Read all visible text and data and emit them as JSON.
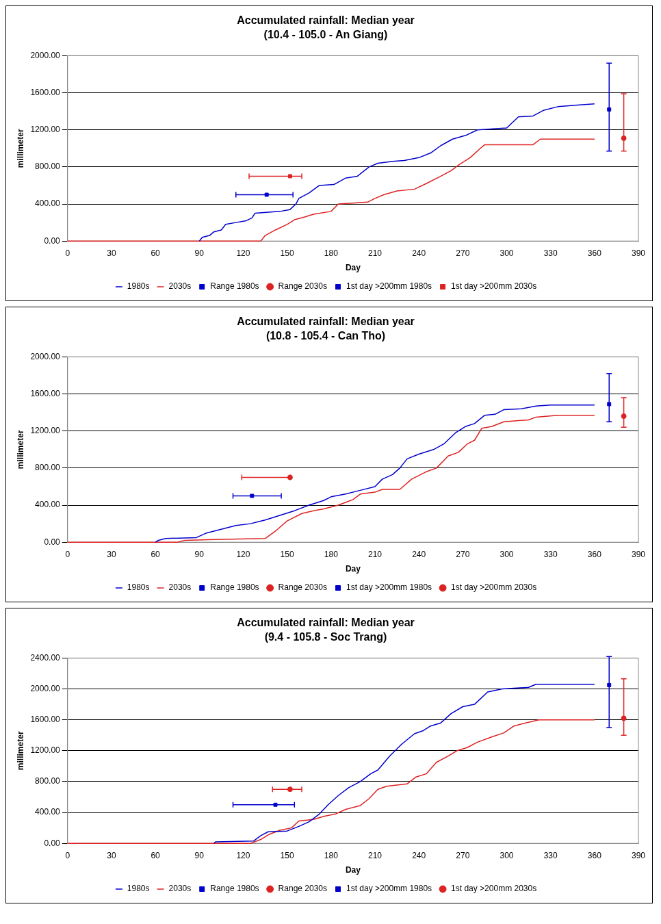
{
  "chart_data": [
    {
      "type": "line",
      "title": "Accumulated rainfall: Median year",
      "subtitle": "(10.4 - 105.0 - An Giang)",
      "xlabel": "Day",
      "ylabel": "millimeter",
      "xlim": [
        0,
        390
      ],
      "xticks": [
        0,
        30,
        60,
        90,
        120,
        150,
        180,
        210,
        240,
        270,
        300,
        330,
        360,
        390
      ],
      "ylim": [
        0,
        2000
      ],
      "yticks": [
        {
          "value": 0,
          "label": "0.00"
        },
        {
          "value": 400,
          "label": "400.00"
        },
        {
          "value": 800,
          "label": "800.00"
        },
        {
          "value": 1200,
          "label": "1200.00"
        },
        {
          "value": 1600,
          "label": "1600.00"
        },
        {
          "value": 2000,
          "label": "2000.00"
        }
      ],
      "grid": "y",
      "legend": "bottom",
      "series": [
        {
          "name": "1980s",
          "type": "line",
          "color": "#0000cc",
          "marker": "none",
          "x": [
            90,
            92,
            97,
            100,
            105,
            108,
            115,
            122,
            126,
            128,
            145,
            152,
            156,
            158,
            165,
            172,
            182,
            190,
            198,
            206,
            212,
            222,
            230,
            240,
            248,
            255,
            263,
            272,
            280,
            300,
            308,
            318,
            325,
            335,
            350,
            360
          ],
          "values": [
            0,
            40,
            60,
            100,
            120,
            180,
            200,
            220,
            250,
            300,
            320,
            340,
            400,
            460,
            520,
            600,
            610,
            680,
            700,
            800,
            840,
            860,
            870,
            900,
            950,
            1030,
            1100,
            1140,
            1200,
            1220,
            1340,
            1350,
            1410,
            1450,
            1470,
            1480
          ]
        },
        {
          "name": "2030s",
          "type": "line",
          "color": "#dd2222",
          "marker": "none",
          "x": [
            0,
            132,
            135,
            142,
            150,
            155,
            162,
            168,
            180,
            185,
            205,
            210,
            216,
            225,
            237,
            245,
            255,
            262,
            268,
            275,
            282,
            285,
            318,
            323,
            360
          ],
          "values": [
            0,
            0,
            60,
            120,
            180,
            230,
            260,
            290,
            320,
            400,
            420,
            460,
            500,
            540,
            560,
            620,
            700,
            760,
            830,
            900,
            1000,
            1040,
            1040,
            1100,
            1100
          ]
        },
        {
          "name": "Range 1980s",
          "type": "scatter",
          "color": "#0000cc",
          "marker": "square",
          "x": [
            370
          ],
          "values": [
            1420
          ],
          "errors": [
            [
              970,
              1920
            ]
          ]
        },
        {
          "name": "Range 2030s",
          "type": "scatter",
          "color": "#dd2222",
          "marker": "circle",
          "x": [
            380
          ],
          "values": [
            1110
          ],
          "errors": [
            [
              970,
              1590
            ]
          ]
        },
        {
          "name": "1st day >200mm 1980s",
          "type": "scatter",
          "color": "#0000cc",
          "marker": "square",
          "x": [
            136
          ],
          "values": [
            500
          ],
          "xerrors": [
            [
              115,
              154
            ]
          ]
        },
        {
          "name": "1st day >200mm 2030s",
          "type": "scatter",
          "color": "#dd2222",
          "marker": "square",
          "x": [
            152
          ],
          "values": [
            700
          ],
          "xerrors": [
            [
              124,
              160
            ]
          ]
        }
      ]
    },
    {
      "type": "line",
      "title": "Accumulated rainfall: Median year",
      "subtitle": "(10.8 - 105.4 - Can Tho)",
      "xlabel": "Day",
      "ylabel": "millimeter",
      "xlim": [
        0,
        390
      ],
      "xticks": [
        0,
        30,
        60,
        90,
        120,
        150,
        180,
        210,
        240,
        270,
        300,
        330,
        360,
        390
      ],
      "ylim": [
        0,
        2000
      ],
      "yticks": [
        {
          "value": 0,
          "label": "0.00"
        },
        {
          "value": 400,
          "label": "400.00"
        },
        {
          "value": 800,
          "label": "800.00"
        },
        {
          "value": 1200,
          "label": "1200.00"
        },
        {
          "value": 1600,
          "label": "1600.00"
        },
        {
          "value": 2000,
          "label": "2000.00"
        }
      ],
      "grid": "y",
      "legend": "bottom",
      "series": [
        {
          "name": "1980s",
          "type": "line",
          "color": "#0000cc",
          "marker": "none",
          "x": [
            60,
            62,
            67,
            88,
            95,
            105,
            115,
            125,
            135,
            145,
            155,
            165,
            175,
            180,
            190,
            200,
            210,
            215,
            222,
            227,
            232,
            240,
            250,
            257,
            265,
            272,
            278,
            285,
            292,
            298,
            310,
            320,
            330,
            360
          ],
          "values": [
            0,
            20,
            40,
            50,
            100,
            140,
            180,
            200,
            240,
            290,
            340,
            400,
            450,
            490,
            520,
            560,
            600,
            680,
            730,
            800,
            900,
            950,
            1000,
            1060,
            1180,
            1250,
            1280,
            1370,
            1380,
            1430,
            1440,
            1470,
            1480,
            1480
          ]
        },
        {
          "name": "2030s",
          "type": "line",
          "color": "#dd2222",
          "marker": "none",
          "x": [
            0,
            75,
            80,
            100,
            135,
            142,
            150,
            160,
            168,
            175,
            185,
            195,
            200,
            210,
            215,
            227,
            235,
            245,
            252,
            260,
            267,
            273,
            278,
            283,
            290,
            298,
            315,
            320,
            335,
            360
          ],
          "values": [
            0,
            0,
            20,
            30,
            40,
            120,
            230,
            310,
            340,
            360,
            400,
            460,
            520,
            540,
            570,
            570,
            680,
            760,
            800,
            930,
            970,
            1060,
            1100,
            1230,
            1250,
            1300,
            1320,
            1350,
            1370,
            1370
          ]
        },
        {
          "name": "Range 1980s",
          "type": "scatter",
          "color": "#0000cc",
          "marker": "square",
          "x": [
            370
          ],
          "values": [
            1490
          ],
          "errors": [
            [
              1300,
              1820
            ]
          ]
        },
        {
          "name": "Range 2030s",
          "type": "scatter",
          "color": "#dd2222",
          "marker": "circle",
          "x": [
            380
          ],
          "values": [
            1360
          ],
          "errors": [
            [
              1240,
              1560
            ]
          ]
        },
        {
          "name": "1st day >200mm 1980s",
          "type": "scatter",
          "color": "#0000cc",
          "marker": "square",
          "x": [
            126
          ],
          "values": [
            500
          ],
          "xerrors": [
            [
              113,
              146
            ]
          ]
        },
        {
          "name": "1st day >200mm 2030s",
          "type": "scatter",
          "color": "#dd2222",
          "marker": "circle",
          "x": [
            152
          ],
          "values": [
            700
          ],
          "xerrors": [
            [
              119,
              152
            ]
          ]
        }
      ]
    },
    {
      "type": "line",
      "title": "Accumulated rainfall: Median year",
      "subtitle": "(9.4 - 105.8 - Soc Trang)",
      "xlabel": "Day",
      "ylabel": "millimeter",
      "xlim": [
        0,
        390
      ],
      "xticks": [
        0,
        30,
        60,
        90,
        120,
        150,
        180,
        210,
        240,
        270,
        300,
        330,
        360,
        390
      ],
      "ylim": [
        0,
        2400
      ],
      "yticks": [
        {
          "value": 0,
          "label": "0.00"
        },
        {
          "value": 400,
          "label": "400.00"
        },
        {
          "value": 800,
          "label": "800.00"
        },
        {
          "value": 1200,
          "label": "1200.00"
        },
        {
          "value": 1600,
          "label": "1600.00"
        },
        {
          "value": 2000,
          "label": "2000.00"
        },
        {
          "value": 2400,
          "label": "2400.00"
        }
      ],
      "grid": "y",
      "legend": "bottom",
      "series": [
        {
          "name": "1980s",
          "type": "line",
          "color": "#0000cc",
          "marker": "none",
          "x": [
            100,
            101,
            127,
            132,
            137,
            150,
            158,
            165,
            172,
            178,
            185,
            192,
            200,
            207,
            212,
            220,
            228,
            237,
            243,
            248,
            255,
            262,
            270,
            278,
            287,
            297,
            315,
            320,
            360
          ],
          "values": [
            0,
            20,
            30,
            100,
            150,
            160,
            220,
            280,
            380,
            500,
            620,
            720,
            800,
            900,
            950,
            1130,
            1280,
            1420,
            1460,
            1520,
            1560,
            1680,
            1770,
            1800,
            1960,
            2000,
            2020,
            2060,
            2060
          ]
        },
        {
          "name": "2030s",
          "type": "line",
          "color": "#dd2222",
          "marker": "none",
          "x": [
            0,
            125,
            132,
            137,
            145,
            153,
            158,
            168,
            175,
            183,
            190,
            200,
            206,
            212,
            218,
            232,
            238,
            245,
            252,
            260,
            266,
            273,
            280,
            290,
            298,
            305,
            313,
            322,
            360
          ],
          "values": [
            0,
            0,
            50,
            110,
            170,
            200,
            290,
            310,
            350,
            380,
            440,
            490,
            580,
            700,
            740,
            770,
            860,
            900,
            1050,
            1130,
            1200,
            1240,
            1310,
            1380,
            1430,
            1520,
            1560,
            1600,
            1600
          ]
        },
        {
          "name": "Range 1980s",
          "type": "scatter",
          "color": "#0000cc",
          "marker": "square",
          "x": [
            370
          ],
          "values": [
            2050
          ],
          "errors": [
            [
              1500,
              2420
            ]
          ]
        },
        {
          "name": "Range 2030s",
          "type": "scatter",
          "color": "#dd2222",
          "marker": "circle",
          "x": [
            380
          ],
          "values": [
            1620
          ],
          "errors": [
            [
              1400,
              2130
            ]
          ]
        },
        {
          "name": "1st day >200mm 1980s",
          "type": "scatter",
          "color": "#0000cc",
          "marker": "square",
          "x": [
            142
          ],
          "values": [
            500
          ],
          "xerrors": [
            [
              113,
              155
            ]
          ]
        },
        {
          "name": "1st day >200mm 2030s",
          "type": "scatter",
          "color": "#dd2222",
          "marker": "circle",
          "x": [
            152
          ],
          "values": [
            700
          ],
          "xerrors": [
            [
              140,
              160
            ]
          ]
        }
      ]
    }
  ]
}
